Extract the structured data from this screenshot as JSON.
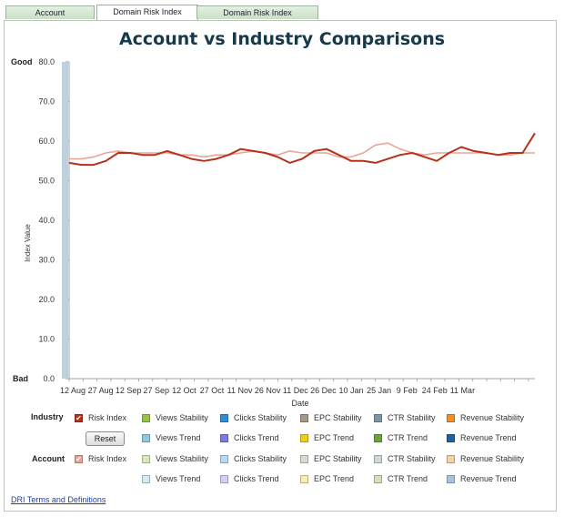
{
  "tabs": [
    {
      "label": "Account Performance",
      "active": false
    },
    {
      "label": "Domain Risk Index (DRI)",
      "active": true
    },
    {
      "label": "Domain Risk Index Frequency",
      "active": false
    }
  ],
  "chart_data": {
    "type": "line",
    "title": "Account vs Industry Comparisons",
    "xlabel": "Date",
    "ylabel": "Index Value",
    "ylim": [
      0,
      80
    ],
    "yticks": [
      "0.0",
      "10.0",
      "20.0",
      "30.0",
      "40.0",
      "50.0",
      "60.0",
      "70.0",
      "80.0"
    ],
    "y_top_label": "Good",
    "y_bottom_label": "Bad",
    "xticks": [
      "12 Aug",
      "27 Aug",
      "12 Sep",
      "27 Sep",
      "12 Oct",
      "27 Oct",
      "11 Nov",
      "26 Nov",
      "11 Dec",
      "26 Dec",
      "10 Jan",
      "25 Jan",
      "9 Feb",
      "24 Feb",
      "11 Mar"
    ],
    "grid": false,
    "series": [
      {
        "name": "Account Risk Index",
        "color": "#b7301a",
        "values": [
          54.5,
          54,
          54,
          55,
          57,
          57,
          56.5,
          56.5,
          57.5,
          56.5,
          55.5,
          55,
          55.5,
          56.5,
          58,
          57.5,
          57,
          56,
          54.5,
          55.5,
          57.5,
          58,
          56.5,
          55,
          55,
          54.5,
          55.5,
          56.5,
          57,
          56,
          55,
          57,
          58.5,
          57.5,
          57,
          56.5,
          57,
          57,
          62
        ]
      },
      {
        "name": "Industry Risk Index",
        "color": "#e9a596",
        "values": [
          55.5,
          55.5,
          56,
          57,
          57.5,
          57,
          57,
          57,
          57,
          56.5,
          56.5,
          56,
          56.5,
          56.5,
          57,
          57.5,
          57,
          56.5,
          57.5,
          57,
          57,
          57,
          56,
          56,
          57,
          59,
          59.5,
          58,
          57,
          56.5,
          57,
          57,
          57,
          57,
          57,
          56.5,
          56.5,
          57,
          57
        ]
      }
    ]
  },
  "legend": {
    "industry_label": "Industry",
    "account_label": "Account",
    "reset_label": "Reset",
    "industry_items": [
      {
        "label": "Risk Index",
        "color": "#b7301a",
        "checked": true
      },
      {
        "label": "Views Stability",
        "color": "#99c24d",
        "checked": false
      },
      {
        "label": "Clicks Stability",
        "color": "#2e8fd6",
        "checked": false
      },
      {
        "label": "EPC Stability",
        "color": "#a49a8b",
        "checked": false
      },
      {
        "label": "CTR Stability",
        "color": "#7b98a6",
        "checked": false
      },
      {
        "label": "Revenue Stability",
        "color": "#ef9226",
        "checked": false
      },
      {
        "label": "Views Trend",
        "color": "#8ccae0",
        "checked": false
      },
      {
        "label": "Clicks Trend",
        "color": "#7b7be6",
        "checked": false
      },
      {
        "label": "EPC Trend",
        "color": "#f2cc1a",
        "checked": false
      },
      {
        "label": "CTR Trend",
        "color": "#6aa535",
        "checked": false
      },
      {
        "label": "Revenue Trend",
        "color": "#205fae",
        "checked": false
      }
    ],
    "account_items": [
      {
        "label": "Risk Index",
        "color": "#e4a599",
        "checked": true
      },
      {
        "label": "Views Stability",
        "color": "#d7e8bd",
        "checked": false
      },
      {
        "label": "Clicks Stability",
        "color": "#b8d9f1",
        "checked": false
      },
      {
        "label": "EPC Stability",
        "color": "#ddd8d0",
        "checked": false
      },
      {
        "label": "CTR Stability",
        "color": "#cfd8dd",
        "checked": false
      },
      {
        "label": "Revenue Stability",
        "color": "#f7d1a6",
        "checked": false
      },
      {
        "label": "Views Trend",
        "color": "#d3ecf4",
        "checked": false
      },
      {
        "label": "Clicks Trend",
        "color": "#d1d1f6",
        "checked": false
      },
      {
        "label": "EPC Trend",
        "color": "#faecb0",
        "checked": false
      },
      {
        "label": "CTR Trend",
        "color": "#cfe2ba",
        "checked": false
      },
      {
        "label": "Revenue Trend",
        "color": "#a9c2e2",
        "checked": false
      }
    ]
  },
  "footer": {
    "terms_link": "DRI Terms and Definitions"
  }
}
